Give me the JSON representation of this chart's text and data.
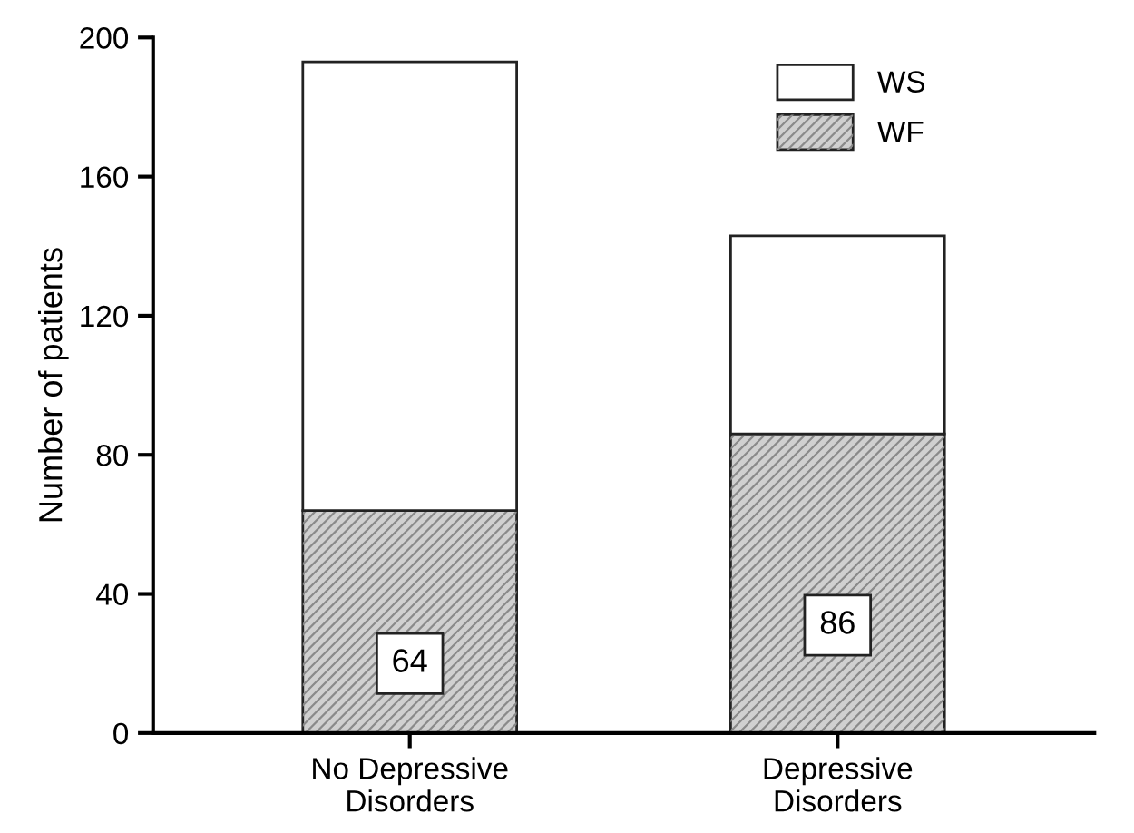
{
  "chart_data": {
    "type": "bar",
    "stacked": true,
    "ylabel": "Number of patients",
    "categories": [
      "No Depressive\nDisorders",
      "Depressive\nDisorders"
    ],
    "series": [
      {
        "name": "WF",
        "color": "#d0d0d0",
        "values": [
          64,
          86
        ],
        "value_labels": [
          "64",
          "86"
        ]
      },
      {
        "name": "WS",
        "color": "#ffffff",
        "values": [
          129,
          57
        ]
      }
    ],
    "ylim": [
      0,
      200
    ],
    "yticks": [
      0,
      40,
      80,
      120,
      160,
      200
    ],
    "grid": false,
    "legend": "top right"
  }
}
